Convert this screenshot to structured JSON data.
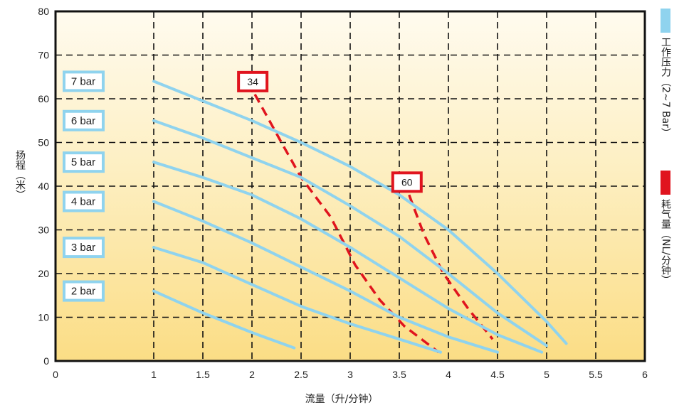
{
  "chart_data": {
    "type": "line",
    "xlabel": "流量（升/分钟）",
    "ylabel": "扬程（米）",
    "xlim": [
      0,
      6.5
    ],
    "ylim": [
      0,
      80
    ],
    "grid": true,
    "x_ticks": [
      "0",
      "1",
      "1.5",
      "2",
      "2.5",
      "3",
      "3.5",
      "4",
      "4.5",
      "5",
      "5.5",
      "6"
    ],
    "y_ticks": [
      "0",
      "10",
      "20",
      "30",
      "40",
      "50",
      "60",
      "70",
      "80"
    ],
    "series": [
      {
        "name": "7 bar",
        "x": [
          1.0,
          1.5,
          2.0,
          2.5,
          3.0,
          3.5,
          4.0,
          4.5,
          5.0,
          5.2
        ],
        "y": [
          64,
          59.5,
          55,
          50,
          44.5,
          38,
          30,
          20,
          9,
          4
        ]
      },
      {
        "name": "6 bar",
        "x": [
          1.0,
          1.5,
          2.0,
          2.5,
          3.0,
          3.5,
          4.0,
          4.5,
          5.0
        ],
        "y": [
          55,
          51,
          46.5,
          42,
          35.5,
          28.5,
          20,
          11,
          3.5
        ]
      },
      {
        "name": "5 bar",
        "x": [
          1.0,
          1.5,
          2.0,
          2.5,
          3.0,
          3.5,
          4.0,
          4.5,
          4.95
        ],
        "y": [
          45.5,
          42,
          38,
          32.5,
          26,
          19,
          12,
          6,
          2
        ]
      },
      {
        "name": "4 bar",
        "x": [
          1.0,
          1.5,
          2.0,
          2.5,
          3.0,
          3.5,
          4.0,
          4.5
        ],
        "y": [
          36.5,
          32,
          27,
          21.5,
          16,
          10,
          5.5,
          2
        ]
      },
      {
        "name": "3 bar",
        "x": [
          1.0,
          1.5,
          2.0,
          2.5,
          3.0,
          3.5,
          3.92
        ],
        "y": [
          26,
          22.5,
          17.5,
          12.5,
          8.5,
          5,
          2
        ]
      },
      {
        "name": "2 bar",
        "x": [
          1.0,
          1.5,
          2.0,
          2.43
        ],
        "y": [
          16,
          11,
          6.5,
          3
        ]
      }
    ],
    "air_consumption": [
      {
        "label": "34",
        "x": [
          2.03,
          2.3,
          2.5,
          2.8,
          3.05,
          3.3,
          3.55,
          3.9
        ],
        "y": [
          61,
          50,
          42,
          33,
          22,
          14,
          8,
          2
        ]
      },
      {
        "label": "60",
        "x": [
          3.6,
          3.75,
          3.95,
          4.2,
          4.45
        ],
        "y": [
          38,
          29,
          20,
          12,
          5
        ]
      }
    ],
    "legend": [
      {
        "label": "工作压力（2~7 Bar）",
        "color": "#8fd3ee"
      },
      {
        "label": "耗气量（NL/分钟）",
        "color": "#e0141e"
      }
    ]
  },
  "colors": {
    "pressure_curve": "#8fd3ee",
    "air_line": "#e0141e",
    "bg_top": "#fffbef",
    "bg_bottom": "#fbdd85"
  }
}
